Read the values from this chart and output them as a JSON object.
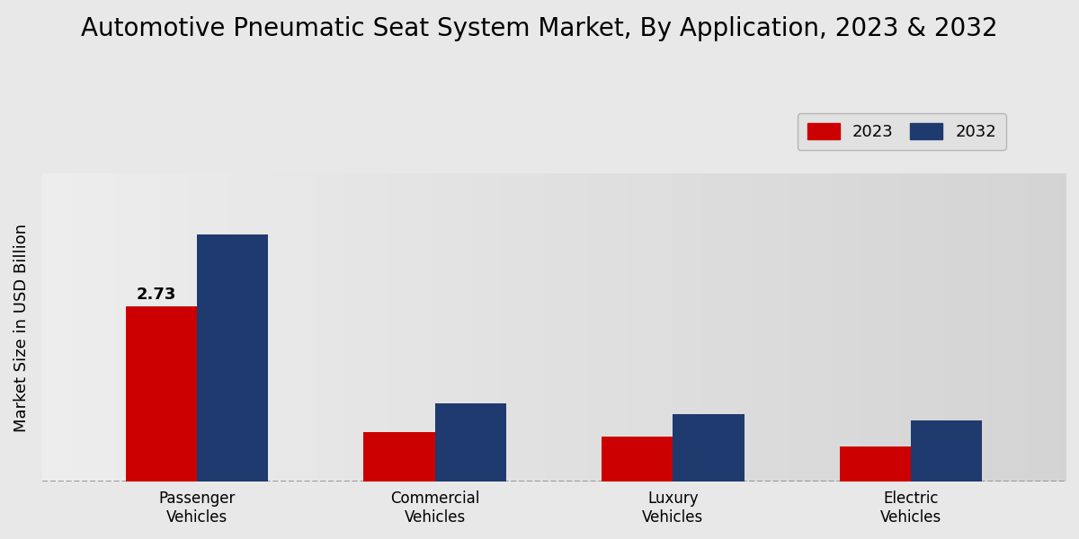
{
  "title": "Automotive Pneumatic Seat System Market, By Application, 2023 & 2032",
  "ylabel": "Market Size in USD Billion",
  "categories": [
    "Passenger\nVehicles",
    "Commercial\nVehicles",
    "Luxury\nVehicles",
    "Electric\nVehicles"
  ],
  "values_2023": [
    2.73,
    0.78,
    0.7,
    0.55
  ],
  "values_2032": [
    3.85,
    1.22,
    1.05,
    0.95
  ],
  "label_2023": "2023",
  "label_2032": "2032",
  "color_2023": "#cc0000",
  "color_2032": "#1e3a6e",
  "annotation_value": "2.73",
  "annotation_index": 0,
  "bar_width": 0.3,
  "ylim": [
    0,
    4.8
  ],
  "bg_left": "#f0f0f0",
  "bg_right": "#c8c8c8",
  "title_fontsize": 20,
  "axis_label_fontsize": 13,
  "tick_label_fontsize": 12,
  "legend_fontsize": 13
}
